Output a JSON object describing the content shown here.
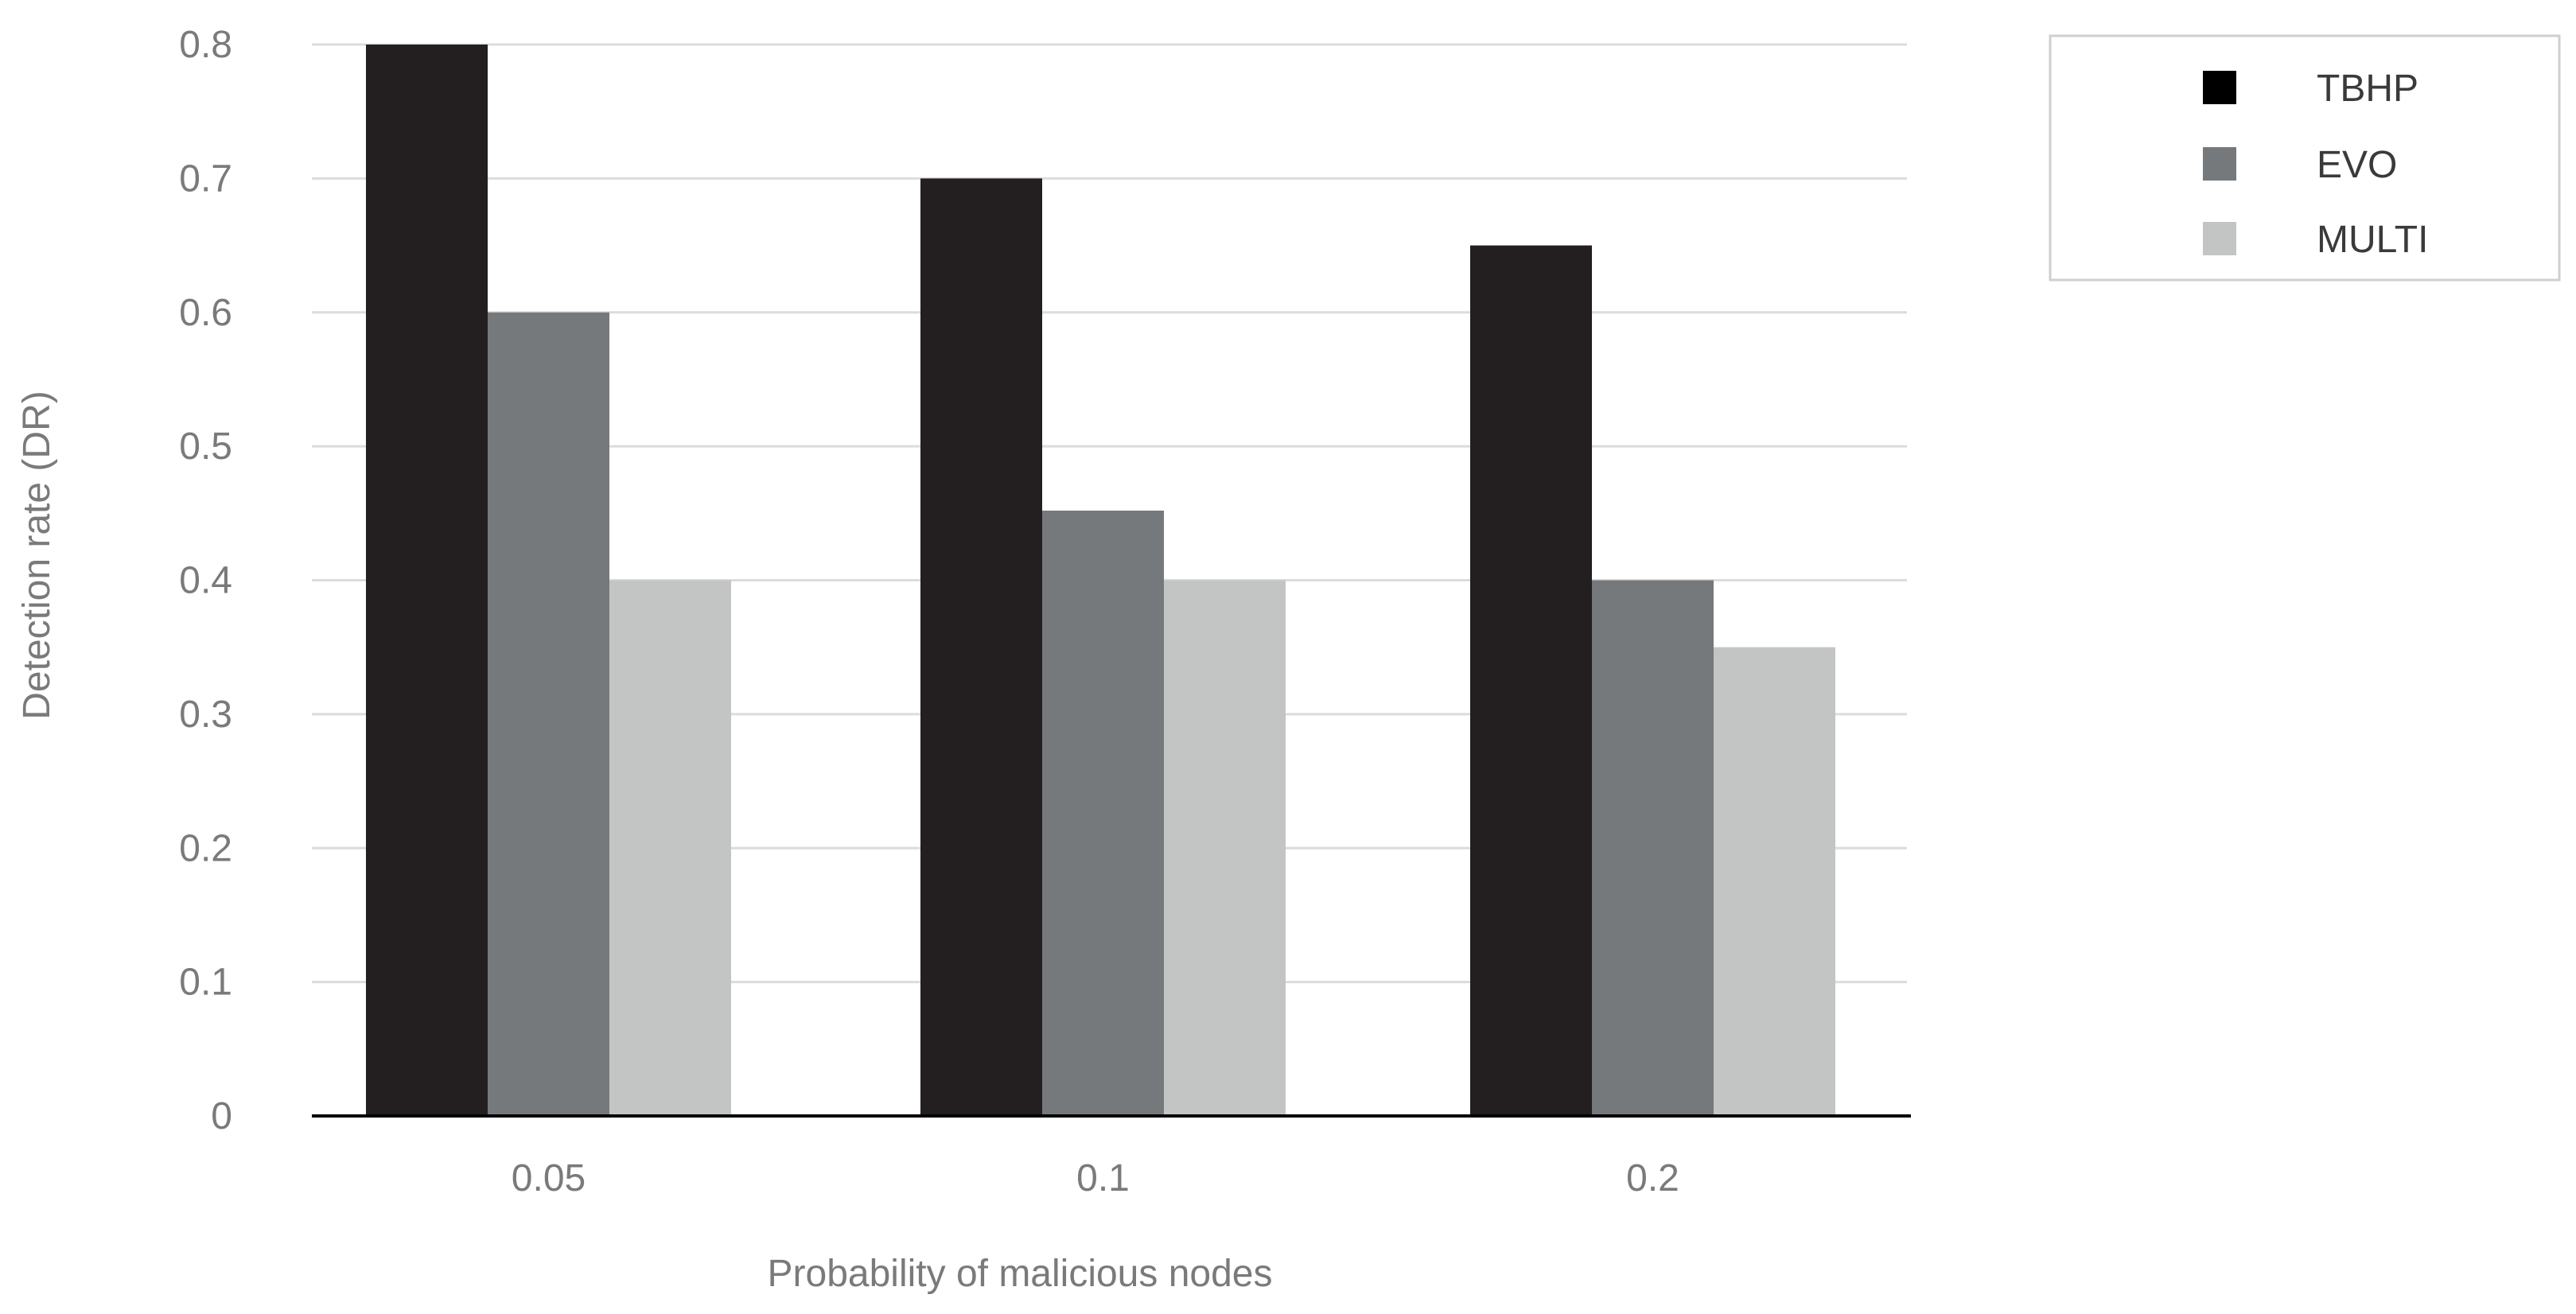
{
  "chart_data": {
    "type": "bar",
    "title": "",
    "xlabel": "Probability of malicious nodes",
    "ylabel": "Detection rate (DR)",
    "categories": [
      "0.05",
      "0.1",
      "0.2"
    ],
    "series": [
      {
        "name": "TBHP",
        "values": [
          0.8,
          0.7,
          0.65
        ],
        "color": "#231f20"
      },
      {
        "name": "EVO",
        "values": [
          0.6,
          0.452,
          0.4
        ],
        "color": "#76797b"
      },
      {
        "name": "MULTI",
        "values": [
          0.4,
          0.4,
          0.35
        ],
        "color": "#c3c4c4"
      }
    ],
    "ylim": [
      0,
      0.8
    ],
    "yticks": [
      "0",
      "0.1",
      "0.2",
      "0.3",
      "0.4",
      "0.5",
      "0.6",
      "0.7",
      "0.8"
    ],
    "grid": true,
    "legend": "top-right"
  }
}
